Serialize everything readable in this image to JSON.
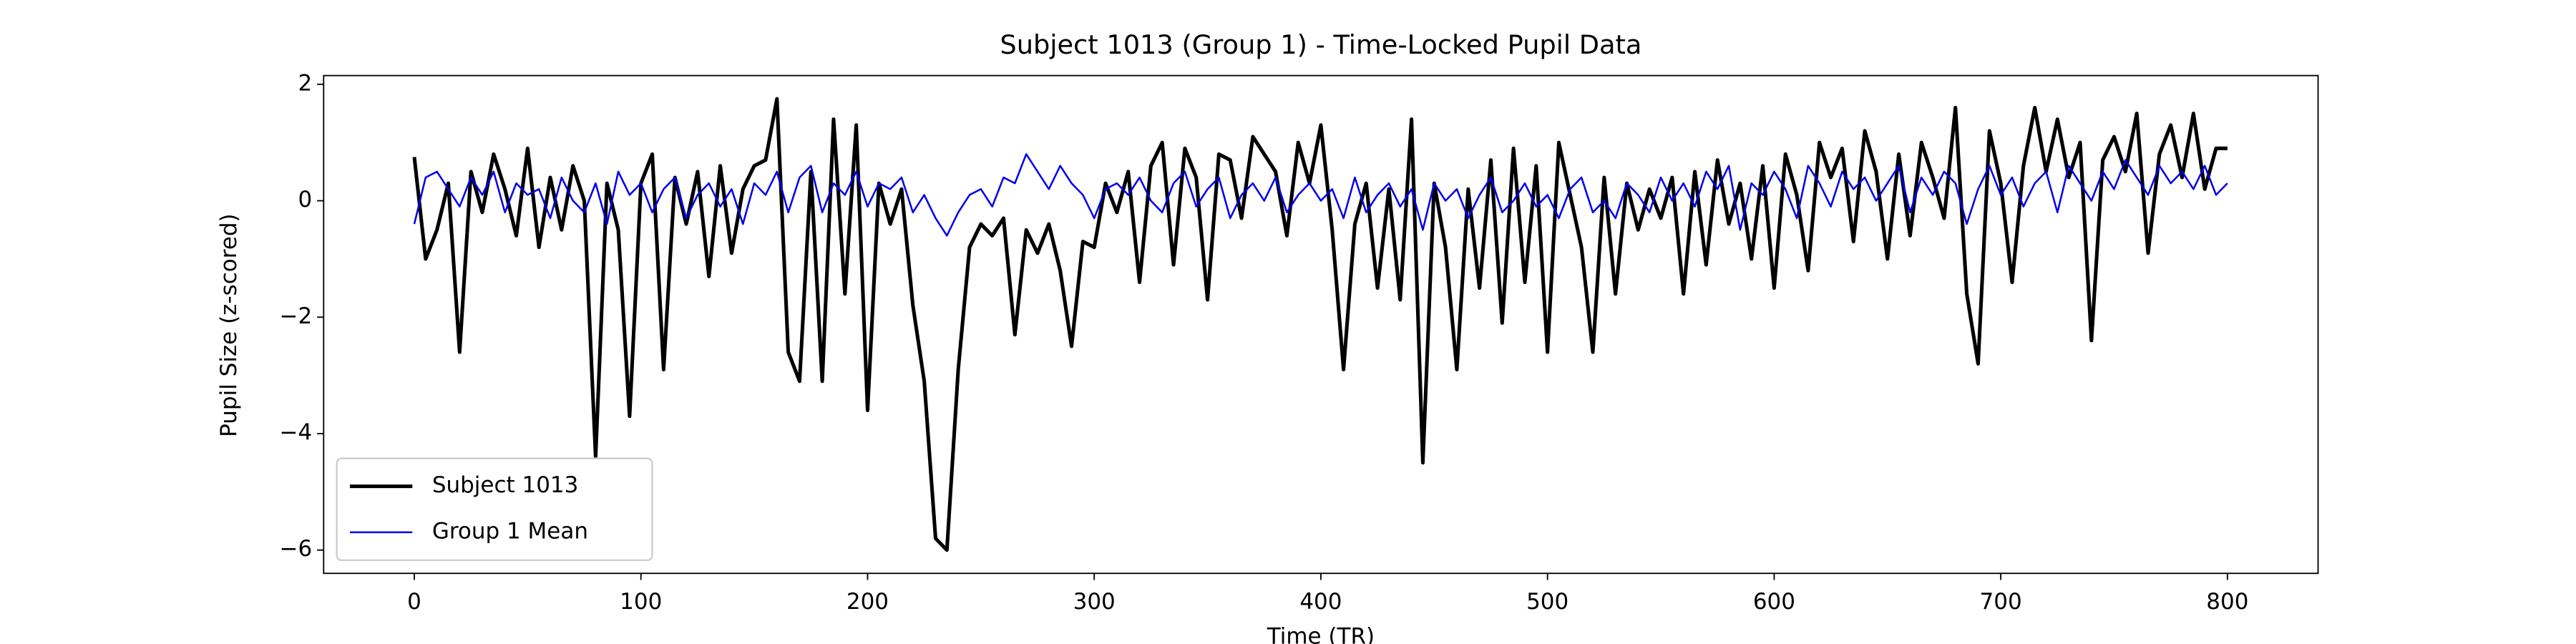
{
  "chart_data": {
    "type": "line",
    "title": "Subject 1013 (Group 1) - Time-Locked Pupil Data",
    "xlabel": "Time (TR)",
    "ylabel": "Pupil Size (z-scored)",
    "xlim": [
      -40,
      840
    ],
    "ylim": [
      -6.4,
      2.15
    ],
    "xticks": [
      0,
      100,
      200,
      300,
      400,
      500,
      600,
      700,
      800
    ],
    "yticks": [
      {
        "value": -6,
        "label": "−6"
      },
      {
        "value": -4,
        "label": "−4"
      },
      {
        "value": -2,
        "label": "−2"
      },
      0,
      2
    ],
    "legend": "lower left",
    "x": [
      0,
      5,
      10,
      15,
      20,
      25,
      30,
      35,
      40,
      45,
      50,
      55,
      60,
      65,
      70,
      75,
      80,
      85,
      90,
      95,
      100,
      105,
      110,
      115,
      120,
      125,
      130,
      135,
      140,
      145,
      150,
      155,
      160,
      165,
      170,
      175,
      180,
      185,
      190,
      195,
      200,
      205,
      210,
      215,
      220,
      225,
      230,
      235,
      240,
      245,
      250,
      255,
      260,
      265,
      270,
      275,
      280,
      285,
      290,
      295,
      300,
      305,
      310,
      315,
      320,
      325,
      330,
      335,
      340,
      345,
      350,
      355,
      360,
      365,
      370,
      375,
      380,
      385,
      390,
      395,
      400,
      405,
      410,
      415,
      420,
      425,
      430,
      435,
      440,
      445,
      450,
      455,
      460,
      465,
      470,
      475,
      480,
      485,
      490,
      495,
      500,
      505,
      510,
      515,
      520,
      525,
      530,
      535,
      540,
      545,
      550,
      555,
      560,
      565,
      570,
      575,
      580,
      585,
      590,
      595,
      600,
      605,
      610,
      615,
      620,
      625,
      630,
      635,
      640,
      645,
      650,
      655,
      660,
      665,
      670,
      675,
      680,
      685,
      690,
      695,
      700,
      705,
      710,
      715,
      720,
      725,
      730,
      735,
      740,
      745,
      750,
      755,
      760,
      765,
      770,
      775,
      780,
      785,
      790,
      795,
      800
    ],
    "series": [
      {
        "name": "Subject 1013",
        "color": "#000000",
        "width": 2.2,
        "values": [
          0.75,
          -1.0,
          -0.5,
          0.3,
          -2.6,
          0.5,
          -0.2,
          0.8,
          0.2,
          -0.6,
          0.9,
          -0.8,
          0.4,
          -0.5,
          0.6,
          0.0,
          -4.4,
          0.3,
          -0.5,
          -3.7,
          0.3,
          0.8,
          -2.9,
          0.4,
          -0.4,
          0.5,
          -1.3,
          0.6,
          -0.9,
          0.2,
          0.6,
          0.7,
          1.75,
          -2.6,
          -3.1,
          0.5,
          -3.1,
          1.4,
          -1.6,
          1.3,
          -3.6,
          0.3,
          -0.4,
          0.2,
          -1.8,
          -3.1,
          -5.8,
          -6.0,
          -2.9,
          -0.8,
          -0.4,
          -0.6,
          -0.3,
          -2.3,
          -0.5,
          -0.9,
          -0.4,
          -1.2,
          -2.5,
          -0.7,
          -0.8,
          0.3,
          -0.2,
          0.5,
          -1.4,
          0.6,
          1.0,
          -1.1,
          0.9,
          0.4,
          -1.7,
          0.8,
          0.7,
          -0.3,
          1.1,
          0.8,
          0.5,
          -0.6,
          1.0,
          0.3,
          1.3,
          -0.5,
          -2.9,
          -0.4,
          0.3,
          -1.5,
          0.2,
          -1.7,
          1.4,
          -4.5,
          0.3,
          -0.8,
          -2.9,
          0.2,
          -1.5,
          0.7,
          -2.1,
          0.9,
          -1.4,
          0.6,
          -2.6,
          1.0,
          0.1,
          -0.8,
          -2.6,
          0.4,
          -1.6,
          0.3,
          -0.5,
          0.2,
          -0.3,
          0.4,
          -1.6,
          0.5,
          -1.1,
          0.7,
          -0.4,
          0.3,
          -1.0,
          0.6,
          -1.5,
          0.8,
          0.1,
          -1.2,
          1.0,
          0.4,
          0.9,
          -0.7,
          1.2,
          0.5,
          -1.0,
          0.8,
          -0.6,
          1.0,
          0.4,
          -0.3,
          1.6,
          -1.6,
          -2.8,
          1.2,
          0.3,
          -1.4,
          0.6,
          1.6,
          0.5,
          1.4,
          0.4,
          1.0,
          -2.4,
          0.7,
          1.1,
          0.5,
          1.5,
          -0.9,
          0.8,
          1.3,
          0.4,
          1.5,
          0.2,
          0.9,
          0.9
        ]
      },
      {
        "name": "Group 1 Mean",
        "color": "#0000ee",
        "width": 1.1,
        "values": [
          -0.4,
          0.4,
          0.5,
          0.2,
          -0.1,
          0.4,
          0.1,
          0.5,
          -0.2,
          0.3,
          0.1,
          0.2,
          -0.3,
          0.4,
          0.0,
          -0.2,
          0.3,
          -0.4,
          0.5,
          0.1,
          0.3,
          -0.2,
          0.2,
          0.4,
          -0.3,
          0.1,
          0.3,
          -0.1,
          0.2,
          -0.4,
          0.3,
          0.1,
          0.5,
          -0.2,
          0.4,
          0.6,
          -0.2,
          0.3,
          0.1,
          0.5,
          -0.1,
          0.3,
          0.2,
          0.4,
          -0.2,
          0.1,
          -0.3,
          -0.6,
          -0.2,
          0.1,
          0.2,
          -0.1,
          0.4,
          0.3,
          0.8,
          0.5,
          0.2,
          0.6,
          0.3,
          0.1,
          -0.3,
          0.2,
          0.3,
          0.1,
          0.4,
          0.0,
          -0.2,
          0.3,
          0.5,
          -0.1,
          0.2,
          0.4,
          -0.3,
          0.1,
          0.3,
          0.0,
          0.4,
          -0.2,
          0.1,
          0.3,
          0.0,
          0.2,
          -0.3,
          0.4,
          -0.2,
          0.1,
          0.3,
          -0.1,
          0.2,
          -0.5,
          0.3,
          0.0,
          0.2,
          -0.3,
          0.1,
          0.4,
          -0.2,
          0.0,
          0.3,
          -0.1,
          0.1,
          -0.3,
          0.2,
          0.4,
          -0.2,
          0.0,
          -0.3,
          0.3,
          0.1,
          -0.2,
          0.4,
          0.0,
          0.3,
          -0.1,
          0.5,
          0.2,
          0.6,
          -0.5,
          0.3,
          0.1,
          0.5,
          0.2,
          -0.3,
          0.6,
          0.3,
          -0.1,
          0.5,
          0.2,
          0.4,
          0.0,
          0.3,
          0.6,
          -0.2,
          0.4,
          0.1,
          0.5,
          0.3,
          -0.4,
          0.2,
          0.6,
          0.1,
          0.4,
          -0.1,
          0.3,
          0.5,
          -0.2,
          0.6,
          0.3,
          0.0,
          0.5,
          0.2,
          0.7,
          0.4,
          0.1,
          0.6,
          0.3,
          0.5,
          0.2,
          0.6,
          0.1,
          0.3
        ]
      }
    ]
  }
}
